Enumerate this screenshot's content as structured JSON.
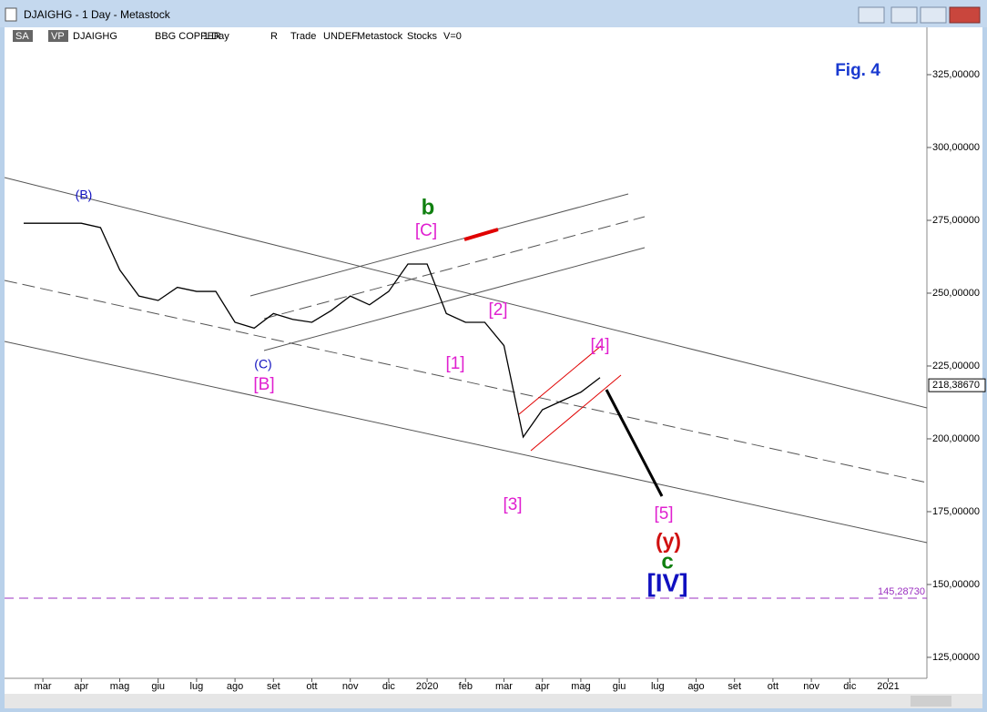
{
  "window": {
    "title": "DJAIGHG - 1 Day - Metastock",
    "toolbar": [
      "SA",
      "VP",
      "DJAIGHG",
      "BBG COPPER",
      "1 Day",
      "R",
      "Trade",
      "UNDEF",
      "Metastock",
      "Stocks",
      "V=0"
    ]
  },
  "chart_data": {
    "type": "line",
    "title": "Fig. 4",
    "categories": [
      null,
      "mar",
      null,
      "apr",
      null,
      "mag",
      null,
      "giu",
      null,
      "lug",
      null,
      "ago",
      null,
      "set",
      null,
      "ott",
      null,
      "nov",
      null,
      "dic",
      null,
      "2020",
      null,
      "feb",
      null,
      "mar",
      null,
      "apr",
      null,
      "mag",
      null,
      "giu",
      null,
      "lug",
      null,
      "ago",
      null,
      "set",
      null,
      "ott",
      null,
      "nov",
      null,
      "dic",
      null,
      "2021"
    ],
    "series": [
      {
        "name": "DJAIGHG",
        "color": "#000000",
        "values": [
          274000,
          274000,
          274000,
          274000,
          272500,
          258000,
          249000,
          247500,
          252000,
          250600,
          250600,
          240000,
          238000,
          243000,
          241000,
          240000,
          244000,
          249000,
          246000,
          250600,
          260000,
          260000,
          243000,
          240000,
          240000,
          232000,
          200600,
          210000,
          213000,
          216000,
          221000,
          null,
          null,
          null,
          null,
          null,
          null,
          null,
          null,
          null,
          null,
          null,
          null,
          null,
          null,
          null
        ]
      }
    ],
    "ylim": [
      117800,
      341250
    ],
    "yticks": [
      {
        "value": 125000,
        "label": "125,00000"
      },
      {
        "value": 150000,
        "label": "150,00000"
      },
      {
        "value": 175000,
        "label": "175,00000"
      },
      {
        "value": 200000,
        "label": "200,00000"
      },
      {
        "value": 225000,
        "label": "225,00000"
      },
      {
        "value": 250000,
        "label": "250,00000"
      },
      {
        "value": 275000,
        "label": "275,00000"
      },
      {
        "value": 300000,
        "label": "300,00000"
      },
      {
        "value": 325000,
        "label": "325,00000"
      }
    ],
    "last_price": {
      "value": 218386.7,
      "label": "218,38670"
    },
    "reference_line": {
      "value": 145287.3,
      "label": "145,28730",
      "color": "#9b30c0"
    },
    "annotations": [
      "(B)",
      "b",
      "[C]",
      "(C)",
      "[B]",
      "[1]",
      "[2]",
      "[3]",
      "[4]",
      "[5]",
      "(y)",
      "c",
      "[IV]"
    ]
  }
}
